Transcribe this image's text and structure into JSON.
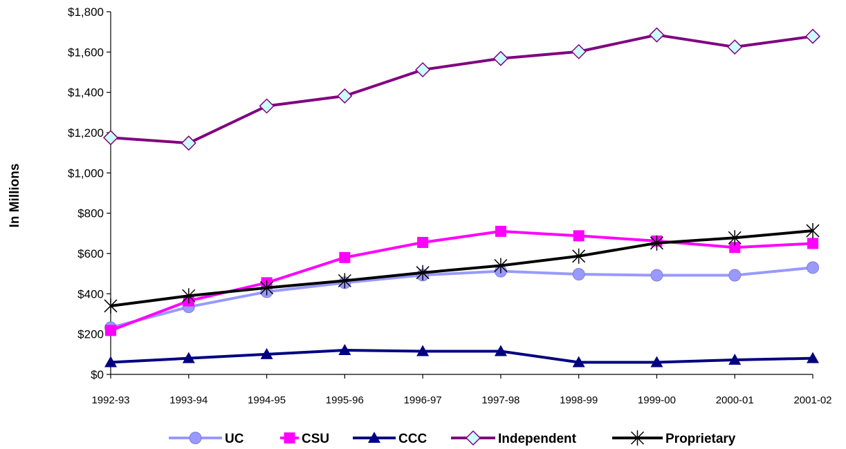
{
  "chart_data": {
    "type": "line",
    "title": "",
    "xlabel": "",
    "ylabel": "In Millions",
    "ylim": [
      0,
      1800
    ],
    "y_ticks": [
      "$0",
      "$200",
      "$400",
      "$600",
      "$800",
      "$1,000",
      "$1,200",
      "$1,400",
      "$1,600",
      "$1,800"
    ],
    "y_tick_values": [
      0,
      200,
      400,
      600,
      800,
      1000,
      1200,
      1400,
      1600,
      1800
    ],
    "categories": [
      "1992-93",
      "1993-94",
      "1994-95",
      "1995-96",
      "1996-97",
      "1997-98",
      "1998-99",
      "1999-00",
      "2000-01",
      "2001-02"
    ],
    "grid": false,
    "legend_position": "bottom",
    "series": [
      {
        "name": "UC",
        "color": "#9999ff",
        "marker": "circle",
        "values": [
          232,
          335,
          410,
          455,
          493,
          512,
          497,
          492,
          492,
          530
        ]
      },
      {
        "name": "CSU",
        "color": "#ff00ff",
        "marker": "square",
        "values": [
          218,
          365,
          455,
          580,
          655,
          710,
          688,
          662,
          630,
          650
        ]
      },
      {
        "name": "CCC",
        "color": "#000080",
        "marker": "triangle",
        "values": [
          60,
          80,
          100,
          120,
          115,
          115,
          60,
          60,
          72,
          80
        ]
      },
      {
        "name": "Independent",
        "color": "#800080",
        "marker": "diamond",
        "marker_fill": "#ccffff",
        "values": [
          1175,
          1148,
          1332,
          1382,
          1512,
          1568,
          1602,
          1685,
          1625,
          1678
        ]
      },
      {
        "name": "Proprietary",
        "color": "#000000",
        "marker": "star",
        "values": [
          340,
          390,
          430,
          465,
          505,
          540,
          587,
          652,
          678,
          713
        ]
      }
    ]
  }
}
